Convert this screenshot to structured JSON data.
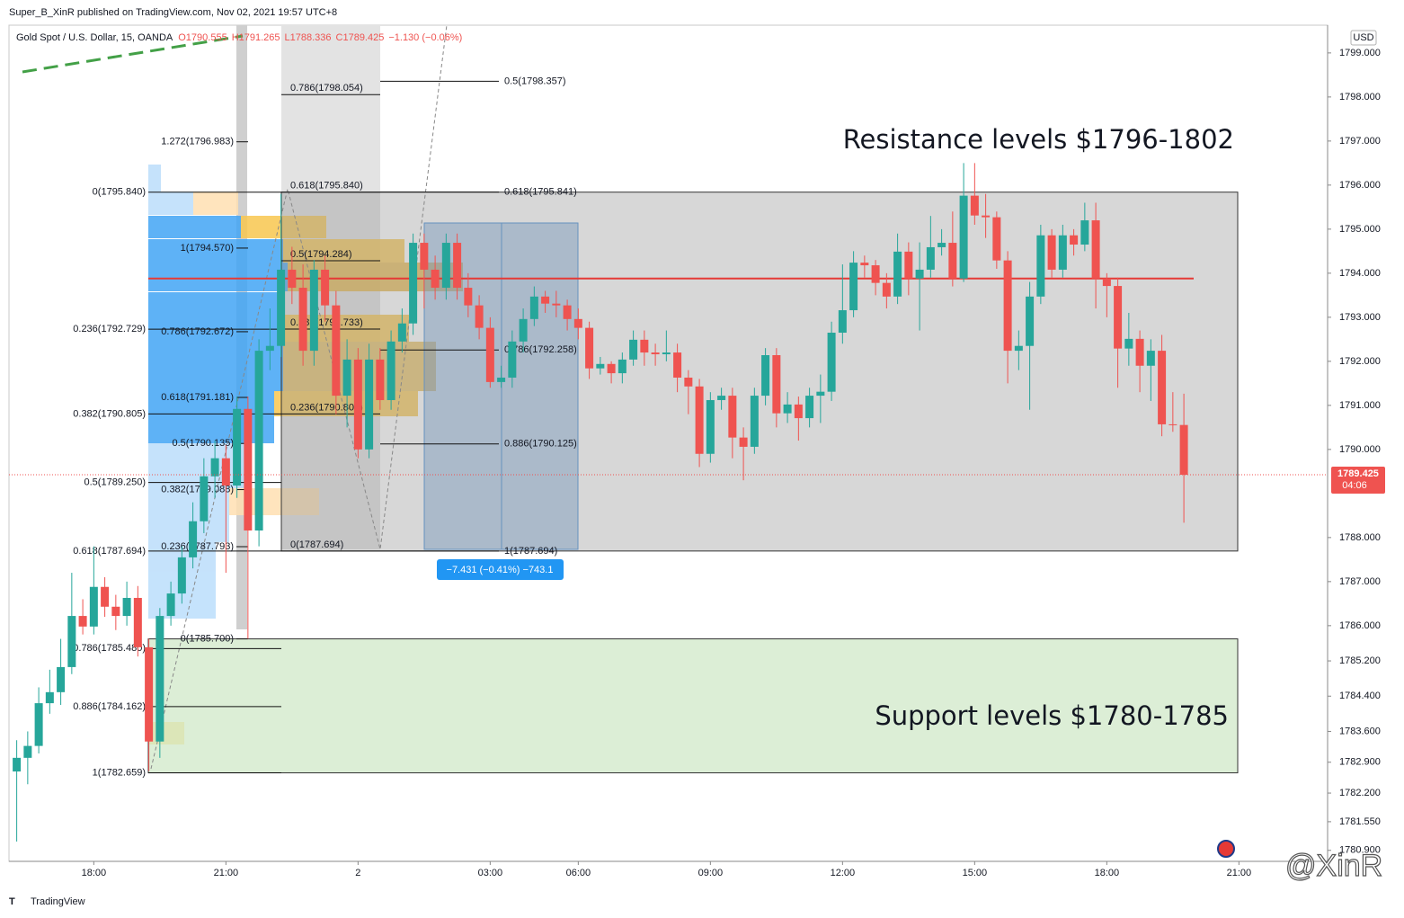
{
  "header": "Super_B_XinR published on TradingView.com, Nov 02, 2021 19:57 UTC+8",
  "footer": "TradingView",
  "watermark": "@XinR",
  "chart_data": {
    "type": "candlestick",
    "symbol": "Gold Spot / U.S. Dollar, 15, OANDA",
    "legend_values": [
      "O1790.555",
      "H1791.265",
      "L1788.336",
      "C1789.425",
      "−1.130 (−0.06%)"
    ],
    "currency": "USD",
    "annotations": [
      "Resistance levels $1796-1802",
      "Support levels $1780-1785"
    ],
    "measure_label": "−7.431 (−0.41%) −743.1",
    "countdown": "04:06",
    "up_color": "#26a69a",
    "down_color": "#ef5350",
    "grid": false,
    "ylim": [
      1780.65,
      1799.63
    ],
    "yticks": [
      {
        "value": 1799,
        "label": "1799.000"
      },
      {
        "value": 1798,
        "label": "1798.000"
      },
      {
        "value": 1797,
        "label": "1797.000"
      },
      {
        "value": 1796,
        "label": "1796.000"
      },
      {
        "value": 1795,
        "label": "1795.000"
      },
      {
        "value": 1794,
        "label": "1794.000"
      },
      {
        "value": 1793,
        "label": "1793.000"
      },
      {
        "value": 1792,
        "label": "1792.000"
      },
      {
        "value": 1791,
        "label": "1791.000"
      },
      {
        "value": 1790,
        "label": "1790.000"
      },
      {
        "value": 1788,
        "label": "1788.000"
      },
      {
        "value": 1787,
        "label": "1787.000"
      },
      {
        "value": 1786,
        "label": "1786.000"
      },
      {
        "value": 1785.2,
        "label": "1785.200"
      },
      {
        "value": 1784.4,
        "label": "1784.400"
      },
      {
        "value": 1783.6,
        "label": "1783.600"
      },
      {
        "value": 1782.9,
        "label": "1782.900"
      },
      {
        "value": 1782.2,
        "label": "1782.200"
      },
      {
        "value": 1781.55,
        "label": "1781.550"
      },
      {
        "value": 1780.9,
        "label": "1780.900"
      }
    ],
    "categories": [
      null,
      null,
      null,
      null,
      null,
      null,
      null,
      "18:00",
      null,
      null,
      null,
      null,
      null,
      null,
      null,
      null,
      null,
      null,
      null,
      "21:00",
      null,
      null,
      null,
      null,
      null,
      null,
      null,
      null,
      null,
      null,
      null,
      "2",
      null,
      null,
      null,
      null,
      null,
      null,
      null,
      null,
      null,
      null,
      null,
      "03:00",
      null,
      null,
      null,
      null,
      null,
      null,
      null,
      "06:00",
      null,
      null,
      null,
      null,
      null,
      null,
      null,
      null,
      null,
      null,
      null,
      "09:00",
      null,
      null,
      null,
      null,
      null,
      null,
      null,
      null,
      null,
      null,
      null,
      "12:00",
      null,
      null,
      null,
      null,
      null,
      null,
      null,
      null,
      null,
      null,
      null,
      "15:00",
      null,
      null,
      null,
      null,
      null,
      null,
      null,
      null,
      null,
      null,
      null,
      "18:00",
      null,
      null,
      null,
      null,
      null,
      null,
      null,
      null,
      null,
      null,
      null,
      "21:00"
    ],
    "candles": [
      [
        1782.69,
        1783.4,
        1781.1,
        1783.0
      ],
      [
        1783.0,
        1783.6,
        1782.4,
        1783.27
      ],
      [
        1783.27,
        1784.6,
        1783.1,
        1784.24
      ],
      [
        1784.24,
        1785.0,
        1784.0,
        1784.49
      ],
      [
        1784.49,
        1785.7,
        1784.2,
        1785.06
      ],
      [
        1785.06,
        1787.2,
        1784.9,
        1786.22
      ],
      [
        1786.22,
        1786.6,
        1785.8,
        1785.98
      ],
      [
        1785.98,
        1787.8,
        1785.8,
        1786.88
      ],
      [
        1786.88,
        1787.1,
        1786.2,
        1786.43
      ],
      [
        1786.43,
        1786.7,
        1785.9,
        1786.22
      ],
      [
        1786.22,
        1787.0,
        1786.0,
        1786.63
      ],
      [
        1786.63,
        1786.9,
        1785.3,
        1785.51
      ],
      [
        1785.51,
        1785.7,
        1782.7,
        1783.37
      ],
      [
        1783.37,
        1786.4,
        1783.0,
        1786.22
      ],
      [
        1786.22,
        1787.0,
        1786.0,
        1786.73
      ],
      [
        1786.73,
        1787.8,
        1786.5,
        1787.55
      ],
      [
        1787.55,
        1788.8,
        1787.3,
        1788.37
      ],
      [
        1788.37,
        1789.8,
        1788.1,
        1789.39
      ],
      [
        1789.39,
        1790.2,
        1788.9,
        1789.8
      ],
      [
        1789.8,
        1790.1,
        1787.2,
        1789.18
      ],
      [
        1789.18,
        1791.2,
        1788.9,
        1790.92
      ],
      [
        1790.92,
        1791.2,
        1785.7,
        1788.16
      ],
      [
        1788.16,
        1792.5,
        1787.8,
        1792.24
      ],
      [
        1792.24,
        1793.2,
        1791.8,
        1792.35
      ],
      [
        1792.35,
        1795.8,
        1792.1,
        1794.08
      ],
      [
        1794.08,
        1794.6,
        1793.3,
        1793.67
      ],
      [
        1793.67,
        1794.2,
        1791.9,
        1792.24
      ],
      [
        1792.24,
        1794.3,
        1791.9,
        1794.08
      ],
      [
        1794.08,
        1794.4,
        1792.9,
        1793.27
      ],
      [
        1793.27,
        1793.6,
        1790.8,
        1791.22
      ],
      [
        1791.22,
        1792.5,
        1790.5,
        1792.04
      ],
      [
        1792.04,
        1792.3,
        1789.8,
        1790.0
      ],
      [
        1790.0,
        1792.4,
        1789.8,
        1792.04
      ],
      [
        1792.04,
        1792.3,
        1790.9,
        1791.12
      ],
      [
        1791.12,
        1792.7,
        1790.9,
        1792.45
      ],
      [
        1792.45,
        1793.2,
        1792.2,
        1792.86
      ],
      [
        1792.86,
        1794.9,
        1792.6,
        1794.69
      ],
      [
        1794.69,
        1794.9,
        1793.2,
        1794.08
      ],
      [
        1794.08,
        1794.4,
        1793.4,
        1793.67
      ],
      [
        1793.67,
        1794.9,
        1793.4,
        1794.69
      ],
      [
        1794.69,
        1794.9,
        1793.4,
        1793.67
      ],
      [
        1793.67,
        1794.0,
        1793.0,
        1793.27
      ],
      [
        1793.27,
        1793.5,
        1792.5,
        1792.76
      ],
      [
        1792.76,
        1793.0,
        1791.4,
        1791.53
      ],
      [
        1791.53,
        1791.9,
        1791.4,
        1791.63
      ],
      [
        1791.63,
        1792.7,
        1791.4,
        1792.45
      ],
      [
        1792.45,
        1793.2,
        1792.2,
        1792.96
      ],
      [
        1792.96,
        1793.7,
        1792.8,
        1793.47
      ],
      [
        1793.47,
        1793.6,
        1793.1,
        1793.31
      ],
      [
        1793.31,
        1793.6,
        1793.0,
        1793.27
      ],
      [
        1793.27,
        1793.4,
        1792.7,
        1792.96
      ],
      [
        1792.96,
        1793.2,
        1792.5,
        1792.76
      ],
      [
        1792.76,
        1792.9,
        1791.6,
        1791.84
      ],
      [
        1791.84,
        1792.1,
        1791.7,
        1791.94
      ],
      [
        1791.94,
        1792.0,
        1791.5,
        1791.73
      ],
      [
        1791.73,
        1792.2,
        1791.5,
        1792.04
      ],
      [
        1792.04,
        1792.7,
        1791.9,
        1792.49
      ],
      [
        1792.49,
        1792.7,
        1791.9,
        1792.2
      ],
      [
        1792.2,
        1792.4,
        1791.9,
        1792.16
      ],
      [
        1792.16,
        1792.7,
        1792.0,
        1792.2
      ],
      [
        1792.2,
        1792.4,
        1791.3,
        1791.63
      ],
      [
        1791.63,
        1791.8,
        1790.8,
        1791.43
      ],
      [
        1791.43,
        1791.6,
        1789.6,
        1789.9
      ],
      [
        1789.9,
        1791.3,
        1789.7,
        1791.12
      ],
      [
        1791.12,
        1791.4,
        1790.9,
        1791.22
      ],
      [
        1791.22,
        1791.4,
        1789.8,
        1790.27
      ],
      [
        1790.27,
        1790.5,
        1789.3,
        1790.06
      ],
      [
        1790.06,
        1791.4,
        1789.9,
        1791.22
      ],
      [
        1791.22,
        1792.3,
        1791.0,
        1792.14
      ],
      [
        1792.14,
        1792.3,
        1790.5,
        1790.82
      ],
      [
        1790.82,
        1791.3,
        1790.6,
        1791.02
      ],
      [
        1791.02,
        1791.2,
        1790.2,
        1790.71
      ],
      [
        1790.71,
        1791.4,
        1790.5,
        1791.22
      ],
      [
        1791.22,
        1791.7,
        1790.6,
        1791.31
      ],
      [
        1791.31,
        1792.9,
        1791.1,
        1792.65
      ],
      [
        1792.65,
        1794.2,
        1792.4,
        1793.16
      ],
      [
        1793.16,
        1794.5,
        1793.0,
        1794.24
      ],
      [
        1794.24,
        1794.4,
        1793.9,
        1794.18
      ],
      [
        1794.18,
        1794.3,
        1793.5,
        1793.78
      ],
      [
        1793.78,
        1794.0,
        1793.2,
        1793.47
      ],
      [
        1793.47,
        1794.9,
        1793.3,
        1794.49
      ],
      [
        1794.49,
        1794.7,
        1793.5,
        1793.88
      ],
      [
        1793.88,
        1794.7,
        1792.7,
        1794.08
      ],
      [
        1794.08,
        1795.3,
        1793.9,
        1794.59
      ],
      [
        1794.59,
        1795.0,
        1794.4,
        1794.69
      ],
      [
        1794.69,
        1795.4,
        1793.7,
        1793.88
      ],
      [
        1793.88,
        1796.5,
        1793.8,
        1795.76
      ],
      [
        1795.76,
        1796.5,
        1795.1,
        1795.31
      ],
      [
        1795.31,
        1795.8,
        1794.8,
        1795.27
      ],
      [
        1795.27,
        1795.4,
        1794.1,
        1794.29
      ],
      [
        1794.29,
        1794.5,
        1791.5,
        1792.24
      ],
      [
        1792.24,
        1792.7,
        1791.8,
        1792.35
      ],
      [
        1792.35,
        1793.8,
        1790.9,
        1793.47
      ],
      [
        1793.47,
        1795.1,
        1793.3,
        1794.86
      ],
      [
        1794.86,
        1795.0,
        1793.9,
        1794.08
      ],
      [
        1794.08,
        1795.1,
        1793.9,
        1794.86
      ],
      [
        1794.86,
        1795.0,
        1794.4,
        1794.65
      ],
      [
        1794.65,
        1795.6,
        1794.5,
        1795.2
      ],
      [
        1795.2,
        1795.6,
        1793.2,
        1793.88
      ],
      [
        1793.88,
        1794.0,
        1793.0,
        1793.71
      ],
      [
        1793.71,
        1793.9,
        1791.4,
        1792.29
      ],
      [
        1792.29,
        1793.1,
        1791.9,
        1792.51
      ],
      [
        1792.51,
        1792.7,
        1791.3,
        1791.9
      ],
      [
        1791.9,
        1792.5,
        1791.1,
        1792.24
      ],
      [
        1792.24,
        1792.6,
        1790.3,
        1790.57
      ],
      [
        1790.57,
        1791.3,
        1790.4,
        1790.555
      ],
      [
        1790.555,
        1791.265,
        1788.336,
        1789.425
      ],
      null,
      null,
      null,
      null,
      null
    ],
    "horizontal_line": {
      "value": 1793.88,
      "color": "#e53935"
    },
    "fib_levels": [
      {
        "levels": [
          {
            "label": "0(1795.840)",
            "value": 1795.84
          },
          {
            "label": "0.236(1792.729)",
            "value": 1792.729
          },
          {
            "label": "0.382(1790.805)",
            "value": 1790.805
          },
          {
            "label": "0.5(1789.250)",
            "value": 1789.25
          },
          {
            "label": "0.618(1787.694)",
            "value": 1787.694
          },
          {
            "label": "0.786(1785.480)",
            "value": 1785.48
          },
          {
            "label": "0.886(1784.162)",
            "value": 1784.162
          },
          {
            "label": "1(1782.659)",
            "value": 1782.659
          }
        ]
      },
      {
        "levels": [
          {
            "label": "1.272(1796.983)",
            "value": 1796.983
          },
          {
            "label": "1(1794.570)",
            "value": 1794.57
          },
          {
            "label": "0.786(1792.672)",
            "value": 1792.672
          },
          {
            "label": "0.618(1791.181)",
            "value": 1791.181
          },
          {
            "label": "0.5(1790.135)",
            "value": 1790.135
          },
          {
            "label": "0.382(1789.088)",
            "value": 1789.088
          },
          {
            "label": "0.236(1787.793)",
            "value": 1787.793
          },
          {
            "label": "0(1785.700)",
            "value": 1785.7
          }
        ]
      },
      {
        "levels": [
          {
            "label": "0.786(1798.054)",
            "value": 1798.054
          },
          {
            "label": "0.618(1795.840)",
            "value": 1795.84
          },
          {
            "label": "0.5(1794.284)",
            "value": 1794.284
          },
          {
            "label": "0.382(1792.733)",
            "value": 1792.733
          },
          {
            "label": "0.236(1790.805)",
            "value": 1790.805
          },
          {
            "label": "0(1787.694)",
            "value": 1787.694
          }
        ]
      },
      {
        "levels": [
          {
            "label": "0.5(1798.357)",
            "value": 1798.357
          },
          {
            "label": "0.618(1795.841)",
            "value": 1795.841
          },
          {
            "label": "0.786(1792.258)",
            "value": 1792.258
          },
          {
            "label": "0.886(1790.125)",
            "value": 1790.125
          },
          {
            "label": "1(1787.694)",
            "value": 1787.694
          }
        ]
      }
    ]
  }
}
